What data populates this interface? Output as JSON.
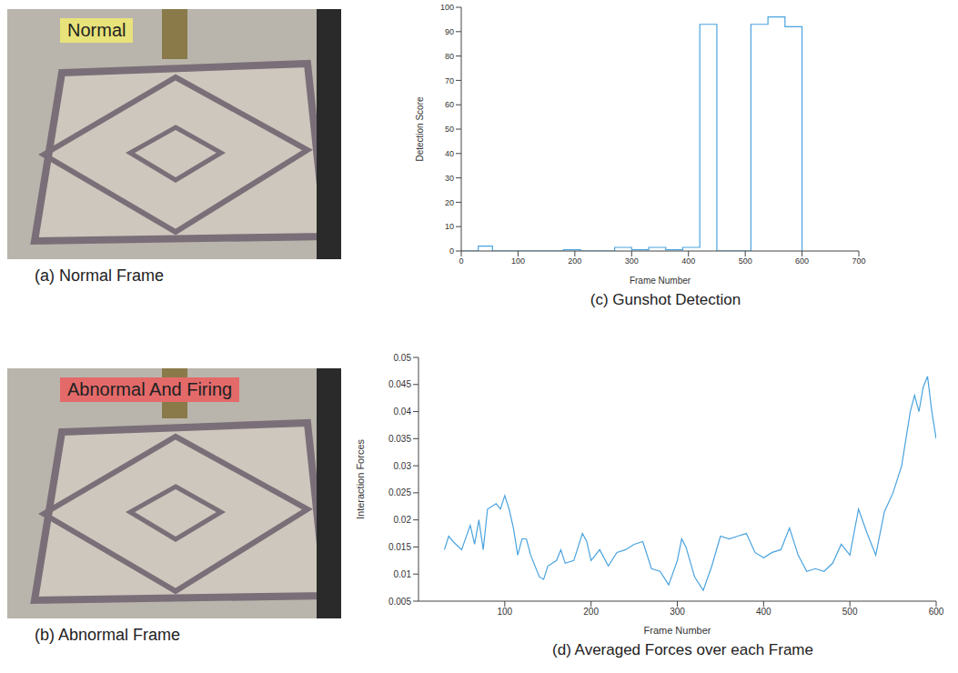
{
  "images": [
    {
      "overlay": "Normal",
      "overlay_color": "#e8e27a",
      "caption": "(a) Normal Frame"
    },
    {
      "overlay": "Abnormal And Firing",
      "overlay_color": "#e46a6a",
      "caption": "(b) Abnormal Frame"
    }
  ],
  "chart_data": [
    {
      "type": "line",
      "title": "(c) Gunshot Detection",
      "x_label": "Frame Number",
      "y_label": "Detection Score",
      "line_style": "step",
      "grid": false,
      "xlim": [
        0,
        700
      ],
      "xticks": [
        0,
        100,
        200,
        300,
        400,
        500,
        600,
        700
      ],
      "ylim": [
        0,
        100
      ],
      "yticks": [
        0,
        10,
        20,
        30,
        40,
        50,
        60,
        70,
        80,
        90,
        100
      ],
      "series": [
        {
          "color": "#4aa3df",
          "x": [
            0,
            30,
            55,
            180,
            210,
            270,
            300,
            330,
            360,
            390,
            420,
            450,
            510,
            540,
            570,
            600
          ],
          "values": [
            0,
            2,
            0,
            0.5,
            0,
            1.5,
            0.5,
            1.5,
            0.5,
            1.5,
            93,
            0,
            93,
            96,
            92,
            0
          ]
        }
      ]
    },
    {
      "type": "line",
      "title": "(d) Averaged Forces over each Frame",
      "x_label": "Frame Number",
      "y_label": "Interaction Forces",
      "line_style": "solid",
      "grid": false,
      "xlim": [
        0,
        600
      ],
      "xticks": [
        100,
        200,
        300,
        400,
        500,
        600
      ],
      "ylim": [
        0.005,
        0.05
      ],
      "yticks": [
        0.005,
        0.01,
        0.015,
        0.02,
        0.025,
        0.03,
        0.035,
        0.04,
        0.045,
        0.05
      ],
      "series": [
        {
          "color": "#4aa3df",
          "x": [
            30,
            35,
            40,
            50,
            60,
            65,
            70,
            75,
            80,
            90,
            95,
            100,
            105,
            110,
            115,
            120,
            125,
            130,
            140,
            145,
            150,
            160,
            165,
            170,
            180,
            190,
            195,
            200,
            210,
            220,
            230,
            240,
            250,
            260,
            270,
            280,
            290,
            300,
            305,
            310,
            320,
            330,
            340,
            350,
            360,
            370,
            380,
            390,
            400,
            410,
            420,
            430,
            440,
            450,
            460,
            470,
            480,
            490,
            500,
            510,
            520,
            530,
            540,
            550,
            560,
            570,
            575,
            580,
            585,
            590,
            595,
            600
          ],
          "values": [
            0.0145,
            0.017,
            0.016,
            0.0145,
            0.019,
            0.0155,
            0.02,
            0.0145,
            0.022,
            0.023,
            0.022,
            0.0245,
            0.022,
            0.0185,
            0.0135,
            0.0165,
            0.0165,
            0.0135,
            0.0095,
            0.009,
            0.0115,
            0.0125,
            0.0145,
            0.012,
            0.0125,
            0.0175,
            0.016,
            0.0125,
            0.0145,
            0.0115,
            0.014,
            0.0145,
            0.0155,
            0.016,
            0.011,
            0.0105,
            0.008,
            0.0125,
            0.0165,
            0.015,
            0.0095,
            0.007,
            0.0115,
            0.017,
            0.0165,
            0.017,
            0.0175,
            0.014,
            0.013,
            0.014,
            0.0145,
            0.0185,
            0.0135,
            0.0105,
            0.011,
            0.0105,
            0.012,
            0.0155,
            0.0135,
            0.022,
            0.0175,
            0.0135,
            0.0215,
            0.025,
            0.03,
            0.04,
            0.043,
            0.04,
            0.0445,
            0.0465,
            0.04,
            0.035
          ]
        }
      ]
    }
  ]
}
